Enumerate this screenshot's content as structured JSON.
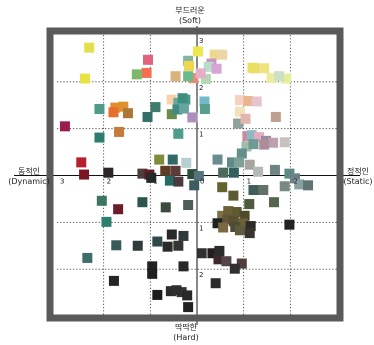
{
  "chart_data": {
    "type": "scatter",
    "xlim": [
      -3,
      3
    ],
    "ylim": [
      -3,
      3
    ],
    "grid": true,
    "axis_labels": {
      "top_ko": "부드러운",
      "top_en": "(Soft)",
      "bottom_ko": "딱딱한",
      "bottom_en": "(Hard)",
      "left_ko": "동적인",
      "left_en": "(Dynamic)",
      "right_ko": "정적인",
      "right_en": "(Static)"
    },
    "x_ticks": [
      {
        "value": -3,
        "label": "3"
      },
      {
        "value": -2,
        "label": "2"
      },
      {
        "value": -1,
        "label": "1"
      },
      {
        "value": 0,
        "label": "0"
      },
      {
        "value": 1,
        "label": "1"
      },
      {
        "value": 2,
        "label": "2"
      },
      {
        "value": 3,
        "label": "3"
      }
    ],
    "y_ticks": [
      {
        "value": 3,
        "label": "3"
      },
      {
        "value": 2,
        "label": "2"
      },
      {
        "value": 1,
        "label": "1"
      },
      {
        "value": -1,
        "label": "1"
      },
      {
        "value": -2,
        "label": "2"
      }
    ],
    "colors": {
      "frame": "#5a5a5a",
      "axis": "#111111",
      "grid": "#333333"
    },
    "points": [
      {
        "x": -2.31,
        "y": 2.73,
        "color": "#e3df4b"
      },
      {
        "x": 0.02,
        "y": 2.65,
        "color": "#ece74e"
      },
      {
        "x": 0.38,
        "y": 2.58,
        "color": "#efd88a"
      },
      {
        "x": 0.54,
        "y": 2.58,
        "color": "#ecd6a6"
      },
      {
        "x": -1.05,
        "y": 2.47,
        "color": "#e2637d"
      },
      {
        "x": -0.19,
        "y": 2.45,
        "color": "#7fb8a2"
      },
      {
        "x": 0.31,
        "y": 2.39,
        "color": "#c795c9"
      },
      {
        "x": -0.17,
        "y": 2.34,
        "color": "#f1d54f"
      },
      {
        "x": 0.25,
        "y": 2.32,
        "color": "#b7dfc7"
      },
      {
        "x": 0.42,
        "y": 2.28,
        "color": "#d8a4d8"
      },
      {
        "x": 1.23,
        "y": 2.29,
        "color": "#eed57d"
      },
      {
        "x": 1.44,
        "y": 2.29,
        "color": "#eee37c"
      },
      {
        "x": 1.19,
        "y": 2.3,
        "color": "#e8e060"
      },
      {
        "x": -1.08,
        "y": 2.19,
        "color": "#f36e52"
      },
      {
        "x": -1.29,
        "y": 2.16,
        "color": "#7db86a"
      },
      {
        "x": -0.46,
        "y": 2.12,
        "color": "#dcb27c"
      },
      {
        "x": -0.08,
        "y": 2.08,
        "color": "#ee8a72"
      },
      {
        "x": -0.19,
        "y": 2.12,
        "color": "#68bb8a"
      },
      {
        "x": 0.19,
        "y": 2.06,
        "color": "#b5d8b4"
      },
      {
        "x": 0.08,
        "y": 2.18,
        "color": "#e3b0c8"
      },
      {
        "x": 1.6,
        "y": 2.08,
        "color": "#ecec9c"
      },
      {
        "x": 1.91,
        "y": 2.07,
        "color": "#e4f097"
      },
      {
        "x": 1.76,
        "y": 2.12,
        "color": "#cbe0c6"
      },
      {
        "x": -2.4,
        "y": 2.07,
        "color": "#e7e347"
      },
      {
        "x": -0.54,
        "y": 1.62,
        "color": "#fbd1a6"
      },
      {
        "x": -0.25,
        "y": 1.62,
        "color": "#4d9985"
      },
      {
        "x": -0.4,
        "y": 1.55,
        "color": "#62a9a3"
      },
      {
        "x": -0.31,
        "y": 1.65,
        "color": "#3b8f7d"
      },
      {
        "x": 0.16,
        "y": 1.58,
        "color": "#75b8c8"
      },
      {
        "x": 0.92,
        "y": 1.61,
        "color": "#f7d0c0"
      },
      {
        "x": 1.1,
        "y": 1.59,
        "color": "#e9b58f"
      },
      {
        "x": 1.28,
        "y": 1.58,
        "color": "#e8c4cf"
      },
      {
        "x": -1.75,
        "y": 1.45,
        "color": "#e68b30"
      },
      {
        "x": -1.58,
        "y": 1.47,
        "color": "#dc922e"
      },
      {
        "x": -2.09,
        "y": 1.42,
        "color": "#4d9a85"
      },
      {
        "x": -0.89,
        "y": 1.46,
        "color": "#3e7d6d"
      },
      {
        "x": -0.54,
        "y": 1.31,
        "color": "#6a8c4a"
      },
      {
        "x": -0.42,
        "y": 1.41,
        "color": "#3e8b83"
      },
      {
        "x": -0.28,
        "y": 1.43,
        "color": "#67a39f"
      },
      {
        "x": 0.17,
        "y": 1.42,
        "color": "#57a08c"
      },
      {
        "x": 0.92,
        "y": 1.36,
        "color": "#f1e2b9"
      },
      {
        "x": -1.79,
        "y": 1.35,
        "color": "#e56f2d"
      },
      {
        "x": -1.48,
        "y": 1.33,
        "color": "#ab7636"
      },
      {
        "x": -0.1,
        "y": 1.24,
        "color": "#ab8fbf"
      },
      {
        "x": 0.88,
        "y": 1.11,
        "color": "#8da29a"
      },
      {
        "x": 1.69,
        "y": 1.25,
        "color": "#bca18f"
      },
      {
        "x": 1.04,
        "y": 1.21,
        "color": "#e0b6b1"
      },
      {
        "x": -1.06,
        "y": 1.25,
        "color": "#317066"
      },
      {
        "x": -2.83,
        "y": 1.05,
        "color": "#9c1c4f"
      },
      {
        "x": -1.67,
        "y": 0.93,
        "color": "#c77a3a"
      },
      {
        "x": 1.08,
        "y": 0.84,
        "color": "#c98b9e"
      },
      {
        "x": 1.17,
        "y": 0.86,
        "color": "#8fb8c0"
      },
      {
        "x": 1.33,
        "y": 0.82,
        "color": "#e5aec0"
      },
      {
        "x": 1.48,
        "y": 0.74,
        "color": "#9b8ba2"
      },
      {
        "x": 1.63,
        "y": 0.7,
        "color": "#bda0ad"
      },
      {
        "x": 1.88,
        "y": 0.71,
        "color": "#c9c2bc"
      },
      {
        "x": -2.09,
        "y": 0.81,
        "color": "#2e7e70"
      },
      {
        "x": -0.4,
        "y": 0.89,
        "color": "#4d9e8c"
      },
      {
        "x": 1.06,
        "y": 0.62,
        "color": "#9fbbab"
      },
      {
        "x": 1.21,
        "y": 0.67,
        "color": "#6f9a91"
      },
      {
        "x": 1.44,
        "y": 0.66,
        "color": "#ad8d9c"
      },
      {
        "x": 0.96,
        "y": 0.47,
        "color": "#638f8c"
      },
      {
        "x": -0.81,
        "y": 0.34,
        "color": "#7d8e3a"
      },
      {
        "x": -0.52,
        "y": 0.34,
        "color": "#2f6a67"
      },
      {
        "x": -0.23,
        "y": 0.27,
        "color": "#b9cfd0"
      },
      {
        "x": 0.44,
        "y": 0.34,
        "color": "#688d8c"
      },
      {
        "x": 0.75,
        "y": 0.28,
        "color": "#5e8b86"
      },
      {
        "x": 0.9,
        "y": 0.28,
        "color": "#7fa096"
      },
      {
        "x": 1.13,
        "y": 0.23,
        "color": "#a9a4a0"
      },
      {
        "x": 1.67,
        "y": 0.12,
        "color": "#6f8583"
      },
      {
        "x": 1.31,
        "y": 0.08,
        "color": "#b4b8b6"
      },
      {
        "x": -2.48,
        "y": 0.28,
        "color": "#b51f2e"
      },
      {
        "x": -0.68,
        "y": 0.1,
        "color": "#5e3d22"
      },
      {
        "x": -0.46,
        "y": 0.1,
        "color": "#5e3a3a"
      },
      {
        "x": -0.1,
        "y": 0.03,
        "color": "#2d4e3c"
      },
      {
        "x": 0.04,
        "y": -0.01,
        "color": "#56727b"
      },
      {
        "x": 0.56,
        "y": 0.06,
        "color": "#4b6c5c"
      },
      {
        "x": 0.79,
        "y": 0.06,
        "color": "#356060"
      },
      {
        "x": 1.98,
        "y": 0.04,
        "color": "#5e8a86"
      },
      {
        "x": 2.1,
        "y": -0.06,
        "color": "#6d8287"
      },
      {
        "x": 2.19,
        "y": -0.19,
        "color": "#8aa1a2"
      },
      {
        "x": 2.38,
        "y": -0.21,
        "color": "#5f7372"
      },
      {
        "x": 1.88,
        "y": -0.23,
        "color": "#7a8a83"
      },
      {
        "x": -2.42,
        "y": 0.02,
        "color": "#7a1622"
      },
      {
        "x": -1.9,
        "y": 0.06,
        "color": "#2d2528"
      },
      {
        "x": -1.17,
        "y": 0.04,
        "color": "#4d3c3c"
      },
      {
        "x": -1.02,
        "y": 0.02,
        "color": "#5f1a28"
      },
      {
        "x": -0.98,
        "y": -0.05,
        "color": "#242a2a"
      },
      {
        "x": -0.58,
        "y": -0.11,
        "color": "#276b66"
      },
      {
        "x": -0.4,
        "y": -0.13,
        "color": "#4a3a3f"
      },
      {
        "x": -0.06,
        "y": -0.21,
        "color": "#3e5d61"
      },
      {
        "x": 0.54,
        "y": -0.25,
        "color": "#64622f"
      },
      {
        "x": 1.21,
        "y": -0.31,
        "color": "#3f5e58"
      },
      {
        "x": 1.42,
        "y": -0.31,
        "color": "#627067"
      },
      {
        "x": 0.78,
        "y": -0.43,
        "color": "#5b5a31"
      },
      {
        "x": 1.65,
        "y": -0.57,
        "color": "#56654f"
      },
      {
        "x": 1.12,
        "y": -0.61,
        "color": "#4f5a3c"
      },
      {
        "x": -2.04,
        "y": -0.54,
        "color": "#3c7562"
      },
      {
        "x": -1.17,
        "y": -0.57,
        "color": "#2d554e"
      },
      {
        "x": -0.67,
        "y": -0.68,
        "color": "#3c4a3e"
      },
      {
        "x": -0.19,
        "y": -0.63,
        "color": "#4e5d57"
      },
      {
        "x": -1.69,
        "y": -0.72,
        "color": "#6b1e2a"
      },
      {
        "x": -1.94,
        "y": -0.99,
        "color": "#2d7f72"
      },
      {
        "x": 0.54,
        "y": -0.86,
        "color": "#7e7146"
      },
      {
        "x": 0.67,
        "y": -0.76,
        "color": "#6a6234"
      },
      {
        "x": 0.85,
        "y": -0.78,
        "color": "#5f5a30"
      },
      {
        "x": 1.02,
        "y": -0.86,
        "color": "#4f4a2c"
      },
      {
        "x": 0.44,
        "y": -1.02,
        "color": "#1e2420"
      },
      {
        "x": 0.65,
        "y": -0.94,
        "color": "#61553a"
      },
      {
        "x": 0.79,
        "y": -0.98,
        "color": "#5a5032"
      },
      {
        "x": 0.98,
        "y": -1.02,
        "color": "#6a6138"
      },
      {
        "x": 1.15,
        "y": -1.08,
        "color": "#2b2a26"
      },
      {
        "x": 0.82,
        "y": -1.1,
        "color": "#4e4c34"
      },
      {
        "x": 0.56,
        "y": -1.11,
        "color": "#7a6845"
      },
      {
        "x": 0.92,
        "y": -1.17,
        "color": "#5f5a3f"
      },
      {
        "x": 1.98,
        "y": -1.05,
        "color": "#222222"
      },
      {
        "x": 1.13,
        "y": -1.23,
        "color": "#3a3430"
      },
      {
        "x": -0.54,
        "y": -1.26,
        "color": "#282a2a"
      },
      {
        "x": -0.29,
        "y": -1.29,
        "color": "#2e3a3a"
      },
      {
        "x": -0.85,
        "y": -1.41,
        "color": "#30484a"
      },
      {
        "x": -0.63,
        "y": -1.52,
        "color": "#2a2a2a"
      },
      {
        "x": -0.4,
        "y": -1.5,
        "color": "#353535"
      },
      {
        "x": -1.73,
        "y": -1.49,
        "color": "#3a5a59"
      },
      {
        "x": -2.35,
        "y": -1.76,
        "color": "#3e6e6a"
      },
      {
        "x": 0.33,
        "y": -1.66,
        "color": "#241d1c"
      },
      {
        "x": 0.46,
        "y": -1.79,
        "color": "#3c2a2a"
      },
      {
        "x": 0.63,
        "y": -1.83,
        "color": "#51454a"
      },
      {
        "x": 0.48,
        "y": -1.61,
        "color": "#2b2b2b"
      },
      {
        "x": 0.96,
        "y": -1.88,
        "color": "#4e3e3a"
      },
      {
        "x": -1.27,
        "y": -1.5,
        "color": "#2f3b3b"
      },
      {
        "x": -0.96,
        "y": -1.94,
        "color": "#222222"
      },
      {
        "x": -0.29,
        "y": -1.94,
        "color": "#282828"
      },
      {
        "x": 0.1,
        "y": -1.66,
        "color": "#303030"
      },
      {
        "x": -1.78,
        "y": -2.25,
        "color": "#252525"
      },
      {
        "x": -0.96,
        "y": -2.1,
        "color": "#1f1f1f"
      },
      {
        "x": -0.56,
        "y": -2.47,
        "color": "#2b2b2b"
      },
      {
        "x": -0.33,
        "y": -2.49,
        "color": "#333333"
      },
      {
        "x": -0.21,
        "y": -2.56,
        "color": "#282828"
      },
      {
        "x": -0.19,
        "y": -2.81,
        "color": "#222222"
      },
      {
        "x": -0.85,
        "y": -2.55,
        "color": "#1c1c1c"
      },
      {
        "x": -0.44,
        "y": -2.45,
        "color": "#2e2e2e"
      },
      {
        "x": 0.4,
        "y": -2.3,
        "color": "#2a2a2a"
      },
      {
        "x": 0.81,
        "y": -1.99,
        "color": "#303030"
      }
    ]
  }
}
